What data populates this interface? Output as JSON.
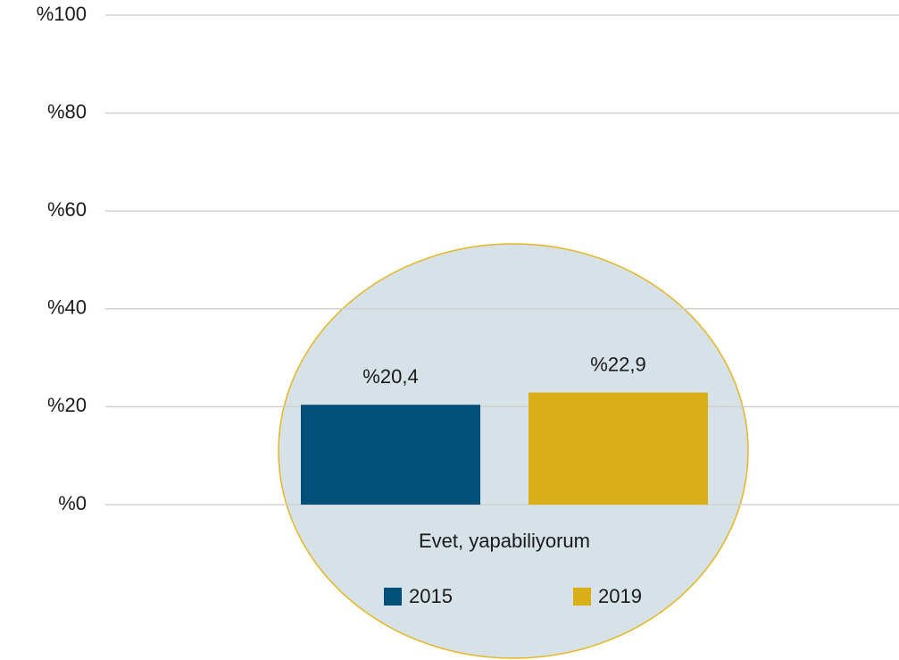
{
  "chart_data": {
    "type": "bar",
    "categories": [
      "Evet, yapabiliyorum"
    ],
    "series": [
      {
        "name": "2015",
        "color": "#00507a",
        "values": [
          20.4
        ],
        "value_labels": [
          "%20,4"
        ]
      },
      {
        "name": "2019",
        "color": "#d9ae17",
        "values": [
          22.9
        ],
        "value_labels": [
          "%22,9"
        ]
      }
    ],
    "ylim": [
      0,
      100
    ],
    "yticks": [
      {
        "value": 0,
        "label": "%0"
      },
      {
        "value": 20,
        "label": "%20"
      },
      {
        "value": 40,
        "label": "%40"
      },
      {
        "value": 60,
        "label": "%60"
      },
      {
        "value": 80,
        "label": "%80"
      },
      {
        "value": 100,
        "label": "%100"
      }
    ],
    "grid": true,
    "legend": "bottom"
  }
}
